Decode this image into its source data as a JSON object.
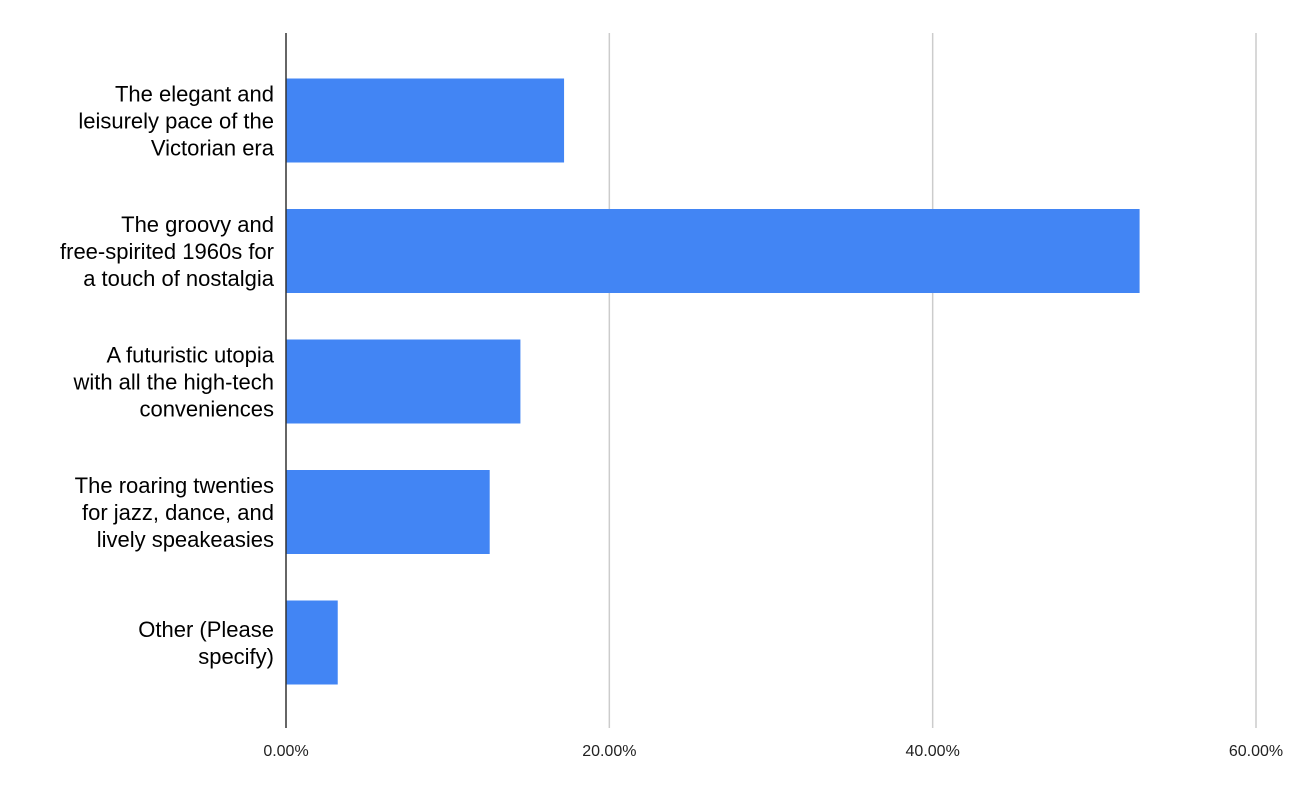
{
  "chart_data": {
    "type": "bar",
    "orientation": "horizontal",
    "title": "",
    "xlabel": "",
    "ylabel": "",
    "categories": [
      [
        "The elegant and",
        "leisurely pace of the",
        "Victorian era"
      ],
      [
        "The groovy and",
        "free-spirited 1960s for",
        "a touch of nostalgia"
      ],
      [
        "A futuristic utopia",
        "with all the high-tech",
        "conveniences"
      ],
      [
        "The roaring twenties",
        "for jazz, dance, and",
        "lively speakeasies"
      ],
      [
        "Other (Please",
        "specify)"
      ]
    ],
    "values": [
      17.2,
      52.8,
      14.5,
      12.6,
      3.2
    ],
    "xlim": [
      0,
      60
    ],
    "xticks": [
      0,
      20,
      40,
      60
    ],
    "xtick_labels": [
      "0.00%",
      "20.00%",
      "40.00%",
      "60.00%"
    ],
    "grid": "vertical",
    "legend": "none",
    "bar_color": "#4285F4",
    "axis_color": "#333333",
    "grid_color": "#cccccc"
  }
}
